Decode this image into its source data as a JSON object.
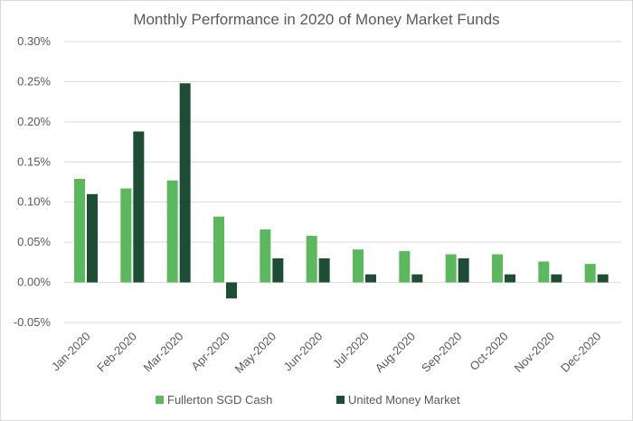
{
  "chart_data": {
    "type": "bar",
    "title": "Monthly Performance in 2020 of Money Market Funds",
    "xlabel": "",
    "ylabel": "",
    "ylim": [
      -0.05,
      0.3
    ],
    "y_ticks": [
      "0.30%",
      "0.25%",
      "0.20%",
      "0.15%",
      "0.10%",
      "0.05%",
      "0.00%",
      "-0.05%"
    ],
    "y_tick_values": [
      0.3,
      0.25,
      0.2,
      0.15,
      0.1,
      0.05,
      0.0,
      -0.05
    ],
    "grid": true,
    "legend_position": "bottom",
    "categories": [
      "Jan-2020",
      "Feb-2020",
      "Mar-2020",
      "Apr-2020",
      "May-2020",
      "Jun-2020",
      "Jul-2020",
      "Aug-2020",
      "Sep-2020",
      "Oct-2020",
      "Nov-2020",
      "Dec-2020"
    ],
    "series": [
      {
        "name": "Fullerton SGD Cash",
        "color": "#5cb85c",
        "values": [
          0.129,
          0.117,
          0.127,
          0.082,
          0.066,
          0.058,
          0.041,
          0.039,
          0.035,
          0.035,
          0.026,
          0.023
        ]
      },
      {
        "name": "United Money Market",
        "color": "#1e4d36",
        "values": [
          0.11,
          0.188,
          0.248,
          -0.02,
          0.03,
          0.03,
          0.01,
          0.01,
          0.03,
          0.01,
          0.01,
          0.01
        ]
      }
    ]
  }
}
